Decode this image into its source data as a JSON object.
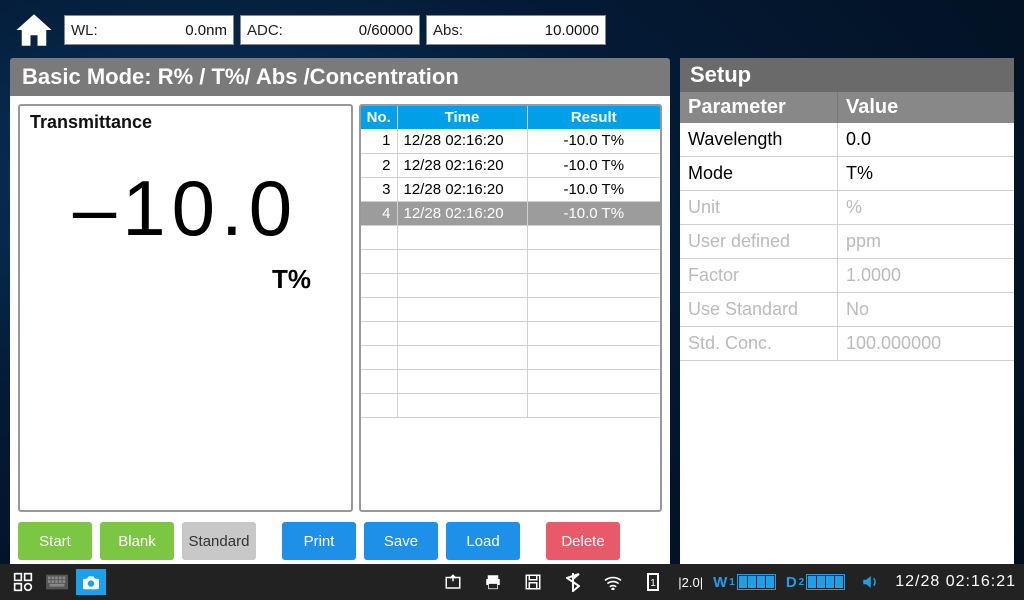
{
  "meters": {
    "wl": {
      "label": "WL:",
      "value": "0.0nm"
    },
    "adc": {
      "label": "ADC:",
      "value": "0/60000"
    },
    "abs": {
      "label": "Abs:",
      "value": "10.0000"
    }
  },
  "mode_title": "Basic Mode: R% / T%/ Abs /Concentration",
  "reading": {
    "label": "Transmittance",
    "value": "–10.0",
    "unit": "T%"
  },
  "table": {
    "headers": [
      "No.",
      "Time",
      "Result"
    ],
    "rows": [
      {
        "no": "1",
        "time": "12/28 02:16:20",
        "result": "-10.0 T%",
        "selected": false
      },
      {
        "no": "2",
        "time": "12/28 02:16:20",
        "result": "-10.0 T%",
        "selected": false
      },
      {
        "no": "3",
        "time": "12/28 02:16:20",
        "result": "-10.0 T%",
        "selected": false
      },
      {
        "no": "4",
        "time": "12/28 02:16:20",
        "result": "-10.0 T%",
        "selected": true
      }
    ],
    "blank_rows": 8
  },
  "buttons": {
    "start": "Start",
    "blank": "Blank",
    "standard": "Standard",
    "print": "Print",
    "save": "Save",
    "load": "Load",
    "delete": "Delete"
  },
  "setup": {
    "title": "Setup",
    "header_param": "Parameter",
    "header_value": "Value",
    "rows": [
      {
        "param": "Wavelength",
        "value": "0.0",
        "disabled": false
      },
      {
        "param": "Mode",
        "value": "T%",
        "disabled": false
      },
      {
        "param": "Unit",
        "value": "%",
        "disabled": true
      },
      {
        "param": "User defined",
        "value": "ppm",
        "disabled": true
      },
      {
        "param": "Factor",
        "value": "1.0000",
        "disabled": true
      },
      {
        "param": "Use Standard",
        "value": "No",
        "disabled": true
      },
      {
        "param": "Std. Conc.",
        "value": "100.000000",
        "disabled": true
      }
    ]
  },
  "taskbar": {
    "indicators": {
      "w": "W",
      "w_sub": "1",
      "d": "D",
      "d_sub": "2",
      "rate": "|2.0|"
    },
    "clock": "12/28 02:16:21"
  },
  "colors": {
    "accent_blue": "#00a0e8",
    "btn_green": "#7bc642",
    "btn_blue": "#1e90e8",
    "btn_red": "#e85a6a",
    "btn_gray": "#c8c8c8",
    "header_gray": "#7a7a7a",
    "tb_accent": "#1ea0e8"
  }
}
